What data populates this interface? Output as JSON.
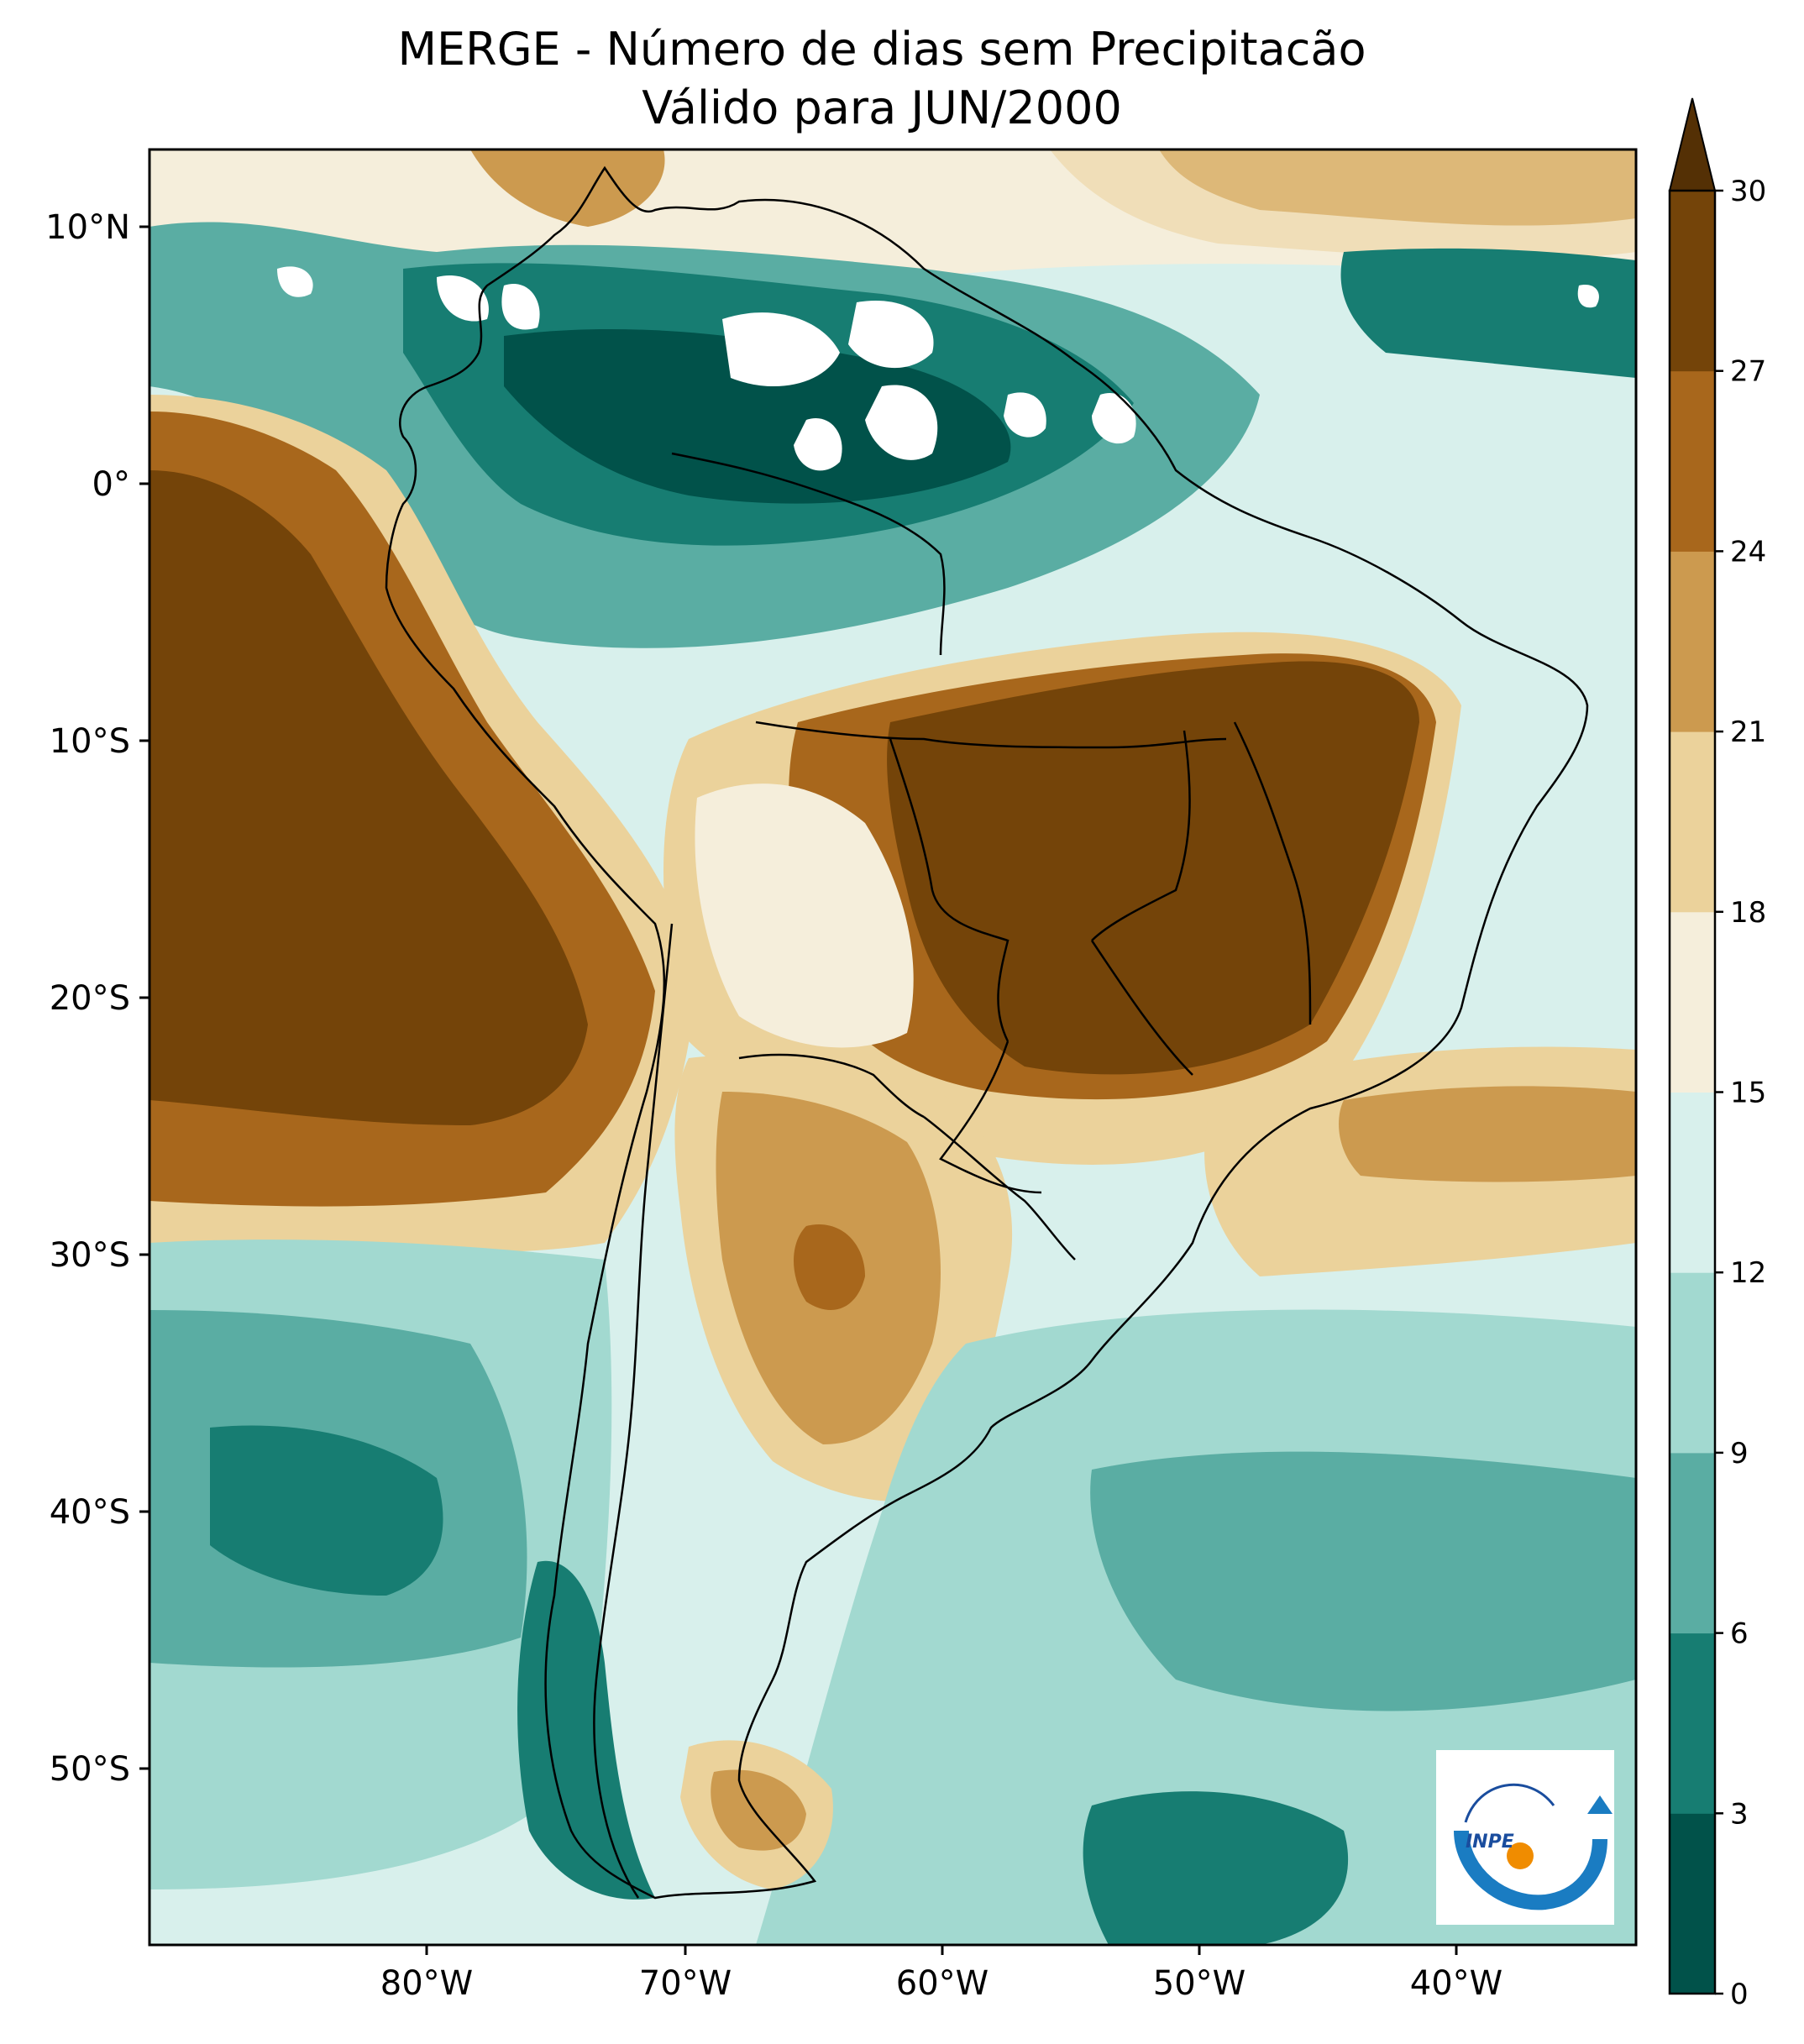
{
  "title_line1": "MERGE - Número de dias sem Precipitacão",
  "title_line2": "Válido para JUN/2000",
  "lat_ticks": [
    "10°N",
    "0°",
    "10°S",
    "20°S",
    "30°S",
    "40°S",
    "50°S"
  ],
  "lon_ticks": [
    "80°W",
    "70°W",
    "60°W",
    "50°W",
    "40°W"
  ],
  "colorbar": {
    "levels": [
      0,
      3,
      6,
      9,
      12,
      15,
      18,
      21,
      24,
      27,
      30
    ],
    "tick_labels": [
      "0",
      "3",
      "6",
      "9",
      "12",
      "15",
      "18",
      "21",
      "24",
      "27",
      "30"
    ],
    "colors": [
      "#01524a",
      "#177d72",
      "#5aada3",
      "#a2d9d0",
      "#d8f0ec",
      "#f5eedb",
      "#ebd29b",
      "#cc9a4f",
      "#a8671c",
      "#744409"
    ],
    "extend_color": "#543005"
  },
  "logo": {
    "text": "INPE",
    "icon": "inpe-logo-icon"
  }
}
